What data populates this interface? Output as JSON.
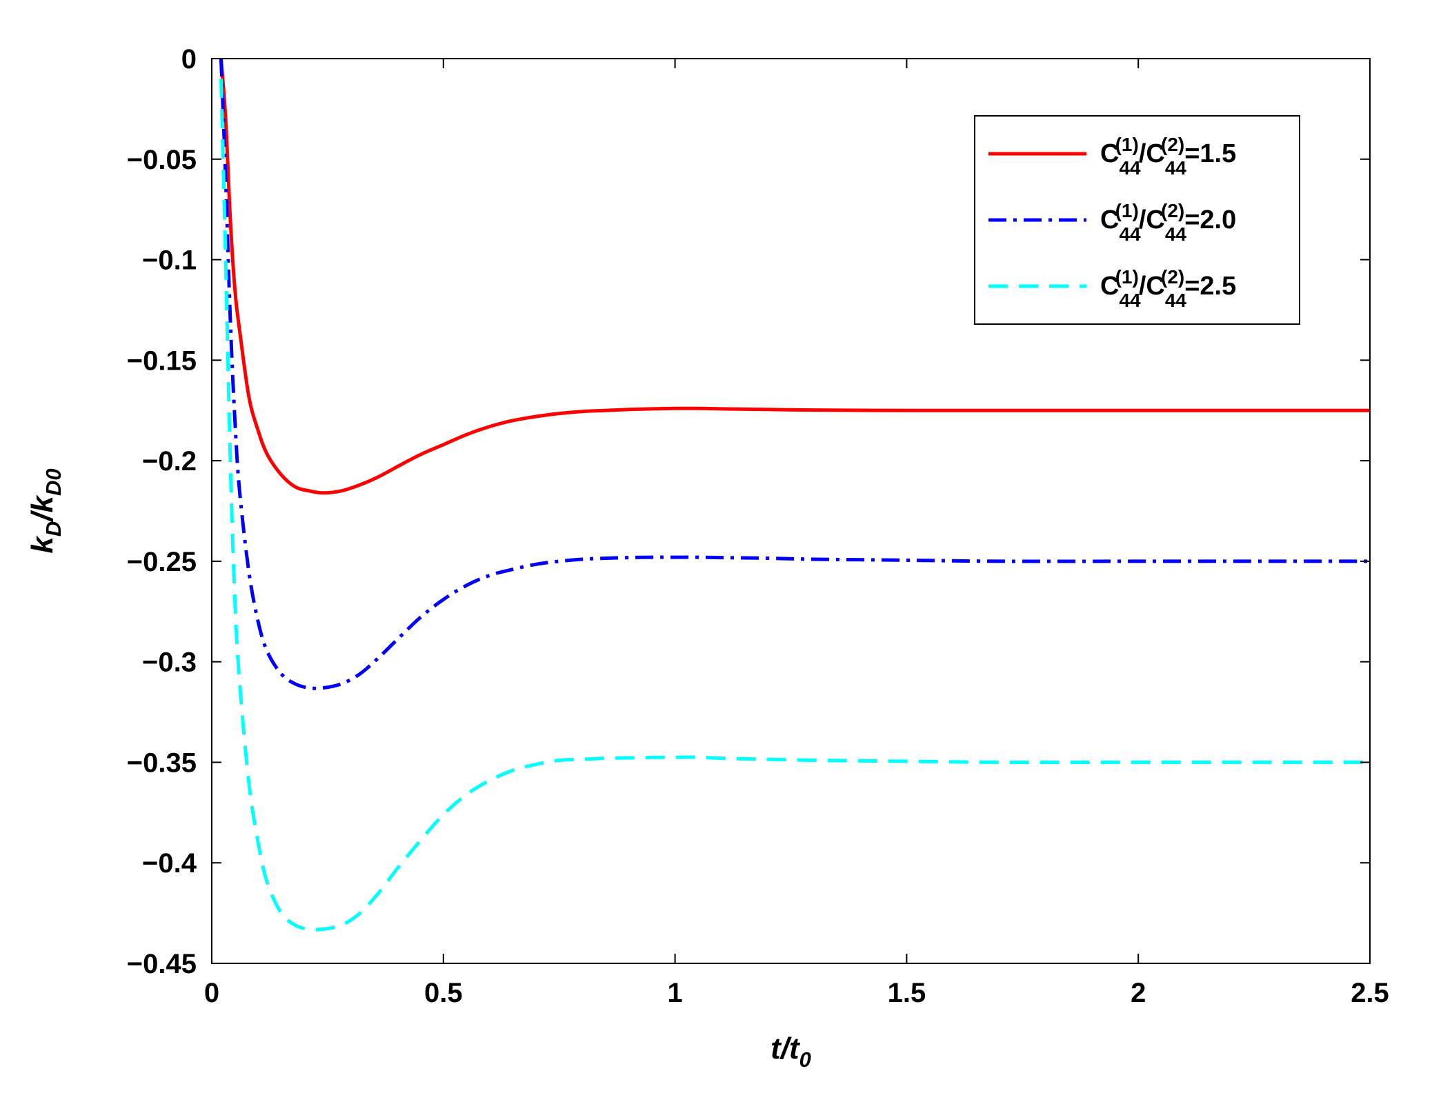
{
  "chart_data": {
    "type": "line",
    "xlabel": "t/t0",
    "xlabel_main": "t/t",
    "xlabel_sub": "0",
    "ylabel": "kD/kD0",
    "ylabel_parts": [
      "k",
      "D",
      "/k",
      "D0"
    ],
    "xlim": [
      0,
      2.5
    ],
    "ylim": [
      -0.45,
      0
    ],
    "xticks": [
      0,
      0.5,
      1,
      1.5,
      2,
      2.5
    ],
    "xtick_labels": [
      "0",
      "0.5",
      "1",
      "1.5",
      "2",
      "2.5"
    ],
    "yticks": [
      0,
      -0.05,
      -0.1,
      -0.15,
      -0.2,
      -0.25,
      -0.3,
      -0.35,
      -0.4,
      -0.45
    ],
    "ytick_labels": [
      "0",
      "−0.05",
      "−0.1",
      "−0.15",
      "−0.2",
      "−0.25",
      "−0.3",
      "−0.35",
      "−0.4",
      "−0.45"
    ],
    "grid": false,
    "legend_position": "top-right",
    "x": [
      0.02,
      0.03,
      0.04,
      0.05,
      0.06,
      0.08,
      0.1,
      0.12,
      0.15,
      0.18,
      0.21,
      0.24,
      0.28,
      0.32,
      0.36,
      0.4,
      0.45,
      0.5,
      0.55,
      0.6,
      0.65,
      0.7,
      0.75,
      0.8,
      0.85,
      0.9,
      0.95,
      1.0,
      1.05,
      1.1,
      1.2,
      1.3,
      1.5,
      1.7,
      2.0,
      2.2,
      2.5
    ],
    "series": [
      {
        "name": "C44(1)/C44(2)=1.5",
        "legend_parts": [
          "C",
          "44",
          "(1)",
          "/C",
          "44",
          "(2)",
          "=1.5"
        ],
        "color": "#ff0000",
        "style": "solid",
        "values": [
          0.0,
          -0.03,
          -0.08,
          -0.115,
          -0.135,
          -0.168,
          -0.185,
          -0.197,
          -0.207,
          -0.213,
          -0.215,
          -0.216,
          -0.215,
          -0.212,
          -0.208,
          -0.203,
          -0.197,
          -0.192,
          -0.187,
          -0.183,
          -0.18,
          -0.178,
          -0.1765,
          -0.1755,
          -0.175,
          -0.1745,
          -0.1742,
          -0.174,
          -0.174,
          -0.1742,
          -0.1745,
          -0.1748,
          -0.175,
          -0.175,
          -0.175,
          -0.175,
          -0.175
        ]
      },
      {
        "name": "C44(1)/C44(2)=2.0",
        "legend_parts": [
          "C",
          "44",
          "(1)",
          "/C",
          "44",
          "(2)",
          "=2.0"
        ],
        "color": "#0000ff",
        "style": "dashdot",
        "values": [
          0.0,
          -0.06,
          -0.13,
          -0.18,
          -0.215,
          -0.255,
          -0.28,
          -0.295,
          -0.306,
          -0.311,
          -0.313,
          -0.313,
          -0.311,
          -0.306,
          -0.298,
          -0.289,
          -0.278,
          -0.269,
          -0.262,
          -0.257,
          -0.254,
          -0.2515,
          -0.25,
          -0.249,
          -0.2485,
          -0.2482,
          -0.248,
          -0.248,
          -0.248,
          -0.2482,
          -0.2485,
          -0.249,
          -0.2495,
          -0.25,
          -0.25,
          -0.25,
          -0.25
        ]
      },
      {
        "name": "C44(1)/C44(2)=2.5",
        "legend_parts": [
          "C",
          "44",
          "(1)",
          "/C",
          "44",
          "(2)",
          "=2.5"
        ],
        "color": "#00ffff",
        "style": "dashed",
        "values": [
          -0.01,
          -0.1,
          -0.2,
          -0.27,
          -0.31,
          -0.36,
          -0.39,
          -0.41,
          -0.425,
          -0.431,
          -0.433,
          -0.433,
          -0.431,
          -0.425,
          -0.415,
          -0.403,
          -0.389,
          -0.376,
          -0.366,
          -0.359,
          -0.354,
          -0.351,
          -0.349,
          -0.3485,
          -0.348,
          -0.3478,
          -0.3476,
          -0.3475,
          -0.3475,
          -0.348,
          -0.3485,
          -0.349,
          -0.3495,
          -0.35,
          -0.35,
          -0.35,
          -0.35
        ]
      }
    ]
  }
}
